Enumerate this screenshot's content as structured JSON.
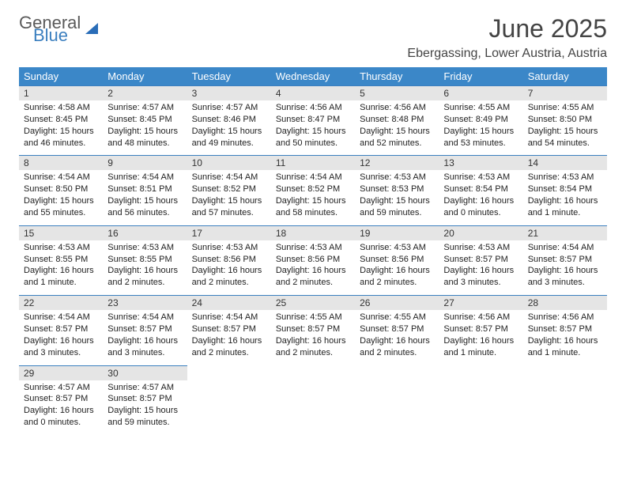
{
  "logo": {
    "line1": "General",
    "line2": "Blue"
  },
  "title": "June 2025",
  "location": "Ebergassing, Lower Austria, Austria",
  "colors": {
    "header_bg": "#3b87c8",
    "header_fg": "#ffffff",
    "daynum_bg": "#e5e5e5",
    "daynum_border": "#3b7fbf",
    "logo_gray": "#5a5a5a",
    "logo_blue": "#3b7fbf"
  },
  "weekdays": [
    "Sunday",
    "Monday",
    "Tuesday",
    "Wednesday",
    "Thursday",
    "Friday",
    "Saturday"
  ],
  "days": [
    {
      "n": "1",
      "sunrise": "Sunrise: 4:58 AM",
      "sunset": "Sunset: 8:45 PM",
      "daylight": "Daylight: 15 hours and 46 minutes."
    },
    {
      "n": "2",
      "sunrise": "Sunrise: 4:57 AM",
      "sunset": "Sunset: 8:45 PM",
      "daylight": "Daylight: 15 hours and 48 minutes."
    },
    {
      "n": "3",
      "sunrise": "Sunrise: 4:57 AM",
      "sunset": "Sunset: 8:46 PM",
      "daylight": "Daylight: 15 hours and 49 minutes."
    },
    {
      "n": "4",
      "sunrise": "Sunrise: 4:56 AM",
      "sunset": "Sunset: 8:47 PM",
      "daylight": "Daylight: 15 hours and 50 minutes."
    },
    {
      "n": "5",
      "sunrise": "Sunrise: 4:56 AM",
      "sunset": "Sunset: 8:48 PM",
      "daylight": "Daylight: 15 hours and 52 minutes."
    },
    {
      "n": "6",
      "sunrise": "Sunrise: 4:55 AM",
      "sunset": "Sunset: 8:49 PM",
      "daylight": "Daylight: 15 hours and 53 minutes."
    },
    {
      "n": "7",
      "sunrise": "Sunrise: 4:55 AM",
      "sunset": "Sunset: 8:50 PM",
      "daylight": "Daylight: 15 hours and 54 minutes."
    },
    {
      "n": "8",
      "sunrise": "Sunrise: 4:54 AM",
      "sunset": "Sunset: 8:50 PM",
      "daylight": "Daylight: 15 hours and 55 minutes."
    },
    {
      "n": "9",
      "sunrise": "Sunrise: 4:54 AM",
      "sunset": "Sunset: 8:51 PM",
      "daylight": "Daylight: 15 hours and 56 minutes."
    },
    {
      "n": "10",
      "sunrise": "Sunrise: 4:54 AM",
      "sunset": "Sunset: 8:52 PM",
      "daylight": "Daylight: 15 hours and 57 minutes."
    },
    {
      "n": "11",
      "sunrise": "Sunrise: 4:54 AM",
      "sunset": "Sunset: 8:52 PM",
      "daylight": "Daylight: 15 hours and 58 minutes."
    },
    {
      "n": "12",
      "sunrise": "Sunrise: 4:53 AM",
      "sunset": "Sunset: 8:53 PM",
      "daylight": "Daylight: 15 hours and 59 minutes."
    },
    {
      "n": "13",
      "sunrise": "Sunrise: 4:53 AM",
      "sunset": "Sunset: 8:54 PM",
      "daylight": "Daylight: 16 hours and 0 minutes."
    },
    {
      "n": "14",
      "sunrise": "Sunrise: 4:53 AM",
      "sunset": "Sunset: 8:54 PM",
      "daylight": "Daylight: 16 hours and 1 minute."
    },
    {
      "n": "15",
      "sunrise": "Sunrise: 4:53 AM",
      "sunset": "Sunset: 8:55 PM",
      "daylight": "Daylight: 16 hours and 1 minute."
    },
    {
      "n": "16",
      "sunrise": "Sunrise: 4:53 AM",
      "sunset": "Sunset: 8:55 PM",
      "daylight": "Daylight: 16 hours and 2 minutes."
    },
    {
      "n": "17",
      "sunrise": "Sunrise: 4:53 AM",
      "sunset": "Sunset: 8:56 PM",
      "daylight": "Daylight: 16 hours and 2 minutes."
    },
    {
      "n": "18",
      "sunrise": "Sunrise: 4:53 AM",
      "sunset": "Sunset: 8:56 PM",
      "daylight": "Daylight: 16 hours and 2 minutes."
    },
    {
      "n": "19",
      "sunrise": "Sunrise: 4:53 AM",
      "sunset": "Sunset: 8:56 PM",
      "daylight": "Daylight: 16 hours and 2 minutes."
    },
    {
      "n": "20",
      "sunrise": "Sunrise: 4:53 AM",
      "sunset": "Sunset: 8:57 PM",
      "daylight": "Daylight: 16 hours and 3 minutes."
    },
    {
      "n": "21",
      "sunrise": "Sunrise: 4:54 AM",
      "sunset": "Sunset: 8:57 PM",
      "daylight": "Daylight: 16 hours and 3 minutes."
    },
    {
      "n": "22",
      "sunrise": "Sunrise: 4:54 AM",
      "sunset": "Sunset: 8:57 PM",
      "daylight": "Daylight: 16 hours and 3 minutes."
    },
    {
      "n": "23",
      "sunrise": "Sunrise: 4:54 AM",
      "sunset": "Sunset: 8:57 PM",
      "daylight": "Daylight: 16 hours and 3 minutes."
    },
    {
      "n": "24",
      "sunrise": "Sunrise: 4:54 AM",
      "sunset": "Sunset: 8:57 PM",
      "daylight": "Daylight: 16 hours and 2 minutes."
    },
    {
      "n": "25",
      "sunrise": "Sunrise: 4:55 AM",
      "sunset": "Sunset: 8:57 PM",
      "daylight": "Daylight: 16 hours and 2 minutes."
    },
    {
      "n": "26",
      "sunrise": "Sunrise: 4:55 AM",
      "sunset": "Sunset: 8:57 PM",
      "daylight": "Daylight: 16 hours and 2 minutes."
    },
    {
      "n": "27",
      "sunrise": "Sunrise: 4:56 AM",
      "sunset": "Sunset: 8:57 PM",
      "daylight": "Daylight: 16 hours and 1 minute."
    },
    {
      "n": "28",
      "sunrise": "Sunrise: 4:56 AM",
      "sunset": "Sunset: 8:57 PM",
      "daylight": "Daylight: 16 hours and 1 minute."
    },
    {
      "n": "29",
      "sunrise": "Sunrise: 4:57 AM",
      "sunset": "Sunset: 8:57 PM",
      "daylight": "Daylight: 16 hours and 0 minutes."
    },
    {
      "n": "30",
      "sunrise": "Sunrise: 4:57 AM",
      "sunset": "Sunset: 8:57 PM",
      "daylight": "Daylight: 15 hours and 59 minutes."
    }
  ],
  "first_day_offset": 0
}
